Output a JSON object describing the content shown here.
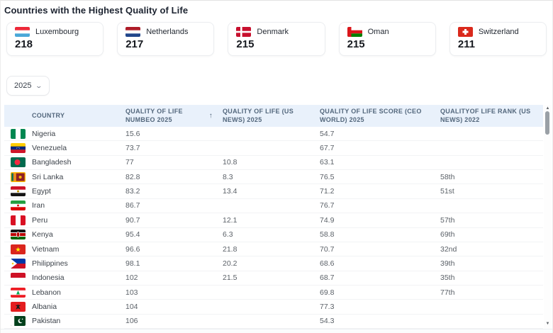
{
  "page": {
    "title": "Countries with the Highest Quality of Life"
  },
  "icons": {
    "chevron_down": "⌄",
    "sort_ascending": "↑",
    "scroll_up": "▲",
    "scroll_down": "▼"
  },
  "colors": {
    "header_bg": "#e9f1fb",
    "header_text": "#53677c",
    "row_divider": "#f2f3f5",
    "card_border": "#ebedf0"
  },
  "cards": [
    {
      "country": "Luxembourg",
      "value": "218",
      "flag": "lu"
    },
    {
      "country": "Netherlands",
      "value": "217",
      "flag": "nl"
    },
    {
      "country": "Denmark",
      "value": "215",
      "flag": "dk"
    },
    {
      "country": "Oman",
      "value": "215",
      "flag": "om"
    },
    {
      "country": "Switzerland",
      "value": "211",
      "flag": "ch"
    }
  ],
  "filters": {
    "year_selected": "2025"
  },
  "table": {
    "columns": [
      "COUNTRY",
      "QUALITY OF LIFE NUMBEO 2025",
      "QUALITY OF LIFE (US NEWS) 2025",
      "QUALITY OF LIFE SCORE (CEO WORLD) 2025",
      "QUALITYOF LIFE RANK (US NEWS) 2022"
    ],
    "sorted_column": "QUALITY OF LIFE NUMBEO 2025",
    "sort_direction": "ascending",
    "rows": [
      {
        "country": "Nigeria",
        "flag": "ng",
        "numbeo_2025": "15.6",
        "us_news_2025": "",
        "ceo_world_2025": "54.7",
        "rank_2022": ""
      },
      {
        "country": "Venezuela",
        "flag": "ve",
        "numbeo_2025": "73.7",
        "us_news_2025": "",
        "ceo_world_2025": "67.7",
        "rank_2022": ""
      },
      {
        "country": "Bangladesh",
        "flag": "bd",
        "numbeo_2025": "77",
        "us_news_2025": "10.8",
        "ceo_world_2025": "63.1",
        "rank_2022": ""
      },
      {
        "country": "Sri Lanka",
        "flag": "lk",
        "numbeo_2025": "82.8",
        "us_news_2025": "8.3",
        "ceo_world_2025": "76.5",
        "rank_2022": "58th"
      },
      {
        "country": "Egypt",
        "flag": "eg",
        "numbeo_2025": "83.2",
        "us_news_2025": "13.4",
        "ceo_world_2025": "71.2",
        "rank_2022": "51st"
      },
      {
        "country": "Iran",
        "flag": "ir",
        "numbeo_2025": "86.7",
        "us_news_2025": "",
        "ceo_world_2025": "76.7",
        "rank_2022": ""
      },
      {
        "country": "Peru",
        "flag": "pe",
        "numbeo_2025": "90.7",
        "us_news_2025": "12.1",
        "ceo_world_2025": "74.9",
        "rank_2022": "57th"
      },
      {
        "country": "Kenya",
        "flag": "ke",
        "numbeo_2025": "95.4",
        "us_news_2025": "6.3",
        "ceo_world_2025": "58.8",
        "rank_2022": "69th"
      },
      {
        "country": "Vietnam",
        "flag": "vn",
        "numbeo_2025": "96.6",
        "us_news_2025": "21.8",
        "ceo_world_2025": "70.7",
        "rank_2022": "32nd"
      },
      {
        "country": "Philippines",
        "flag": "ph",
        "numbeo_2025": "98.1",
        "us_news_2025": "20.2",
        "ceo_world_2025": "68.6",
        "rank_2022": "39th"
      },
      {
        "country": "Indonesia",
        "flag": "id",
        "numbeo_2025": "102",
        "us_news_2025": "21.5",
        "ceo_world_2025": "68.7",
        "rank_2022": "35th"
      },
      {
        "country": "Lebanon",
        "flag": "lb",
        "numbeo_2025": "103",
        "us_news_2025": "",
        "ceo_world_2025": "69.8",
        "rank_2022": "77th"
      },
      {
        "country": "Albania",
        "flag": "al",
        "numbeo_2025": "104",
        "us_news_2025": "",
        "ceo_world_2025": "77.3",
        "rank_2022": ""
      },
      {
        "country": "Pakistan",
        "flag": "pk",
        "numbeo_2025": "106",
        "us_news_2025": "",
        "ceo_world_2025": "54.3",
        "rank_2022": ""
      }
    ]
  }
}
